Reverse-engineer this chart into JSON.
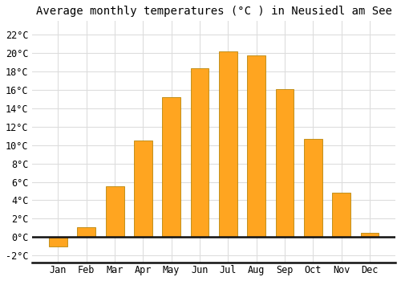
{
  "title": "Average monthly temperatures (°C ) in Neusiedl am See",
  "months": [
    "Jan",
    "Feb",
    "Mar",
    "Apr",
    "May",
    "Jun",
    "Jul",
    "Aug",
    "Sep",
    "Oct",
    "Nov",
    "Dec"
  ],
  "values": [
    -1.0,
    1.1,
    5.5,
    10.5,
    15.2,
    18.4,
    20.2,
    19.8,
    16.1,
    10.7,
    4.8,
    0.5
  ],
  "bar_color_positive": "#FFA520",
  "bar_color_negative": "#FFA520",
  "bar_edge_color": "#B8860B",
  "background_color": "#FFFFFF",
  "grid_color": "#DDDDDD",
  "yticks": [
    -2,
    0,
    2,
    4,
    6,
    8,
    10,
    12,
    14,
    16,
    18,
    20,
    22
  ],
  "ylim": [
    -2.8,
    23.5
  ],
  "title_fontsize": 10,
  "tick_fontsize": 8.5,
  "font_family": "monospace",
  "bar_width": 0.65
}
